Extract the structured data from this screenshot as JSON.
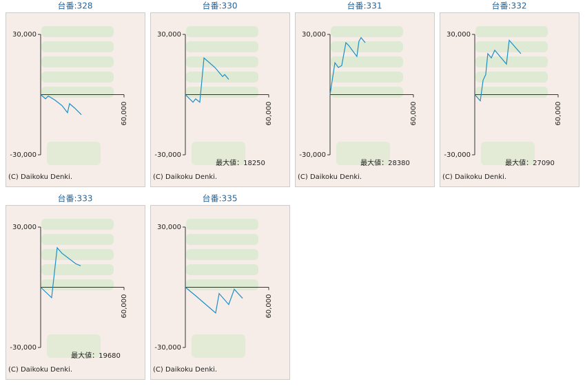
{
  "chart_data": [
    {
      "type": "line",
      "title": "台番:328",
      "color": "#1a8fc9",
      "x": [
        0,
        3500,
        5500,
        10400,
        15400,
        19300,
        20800,
        24300,
        29300
      ],
      "values": [
        0,
        -2100,
        -700,
        -2800,
        -5500,
        -9000,
        -4500,
        -6600,
        -10000
      ],
      "xlim": [
        0,
        60000
      ],
      "xticks": [
        {
          "value": 60000,
          "label": "60,000"
        }
      ],
      "ylim": [
        -30000,
        30000
      ],
      "yticks": [
        {
          "value": 30000,
          "label": "30,000"
        },
        {
          "value": -30000,
          "label": "-30,000"
        }
      ],
      "copyright": "(C) Daikoku Denki."
    },
    {
      "type": "line",
      "title": "台番:330",
      "color": "#1a8fc9",
      "x": [
        0,
        5500,
        7400,
        10400,
        13400,
        21300,
        26800,
        28300,
        31200
      ],
      "values": [
        0,
        -3800,
        -2100,
        -3800,
        18250,
        13500,
        9000,
        10000,
        7600
      ],
      "xlim": [
        0,
        60000
      ],
      "xticks": [
        {
          "value": 60000,
          "label": "60,000"
        }
      ],
      "ylim": [
        -30000,
        30000
      ],
      "yticks": [
        {
          "value": 30000,
          "label": "30,000"
        },
        {
          "value": -30000,
          "label": "-30,000"
        }
      ],
      "annotation": "最大値：18250",
      "copyright": "(C) Daikoku Denki."
    },
    {
      "type": "line",
      "title": "台番:331",
      "color": "#1a8fc9",
      "x": [
        0,
        3500,
        6000,
        8400,
        11400,
        13400,
        19300,
        20800,
        22300,
        25300
      ],
      "values": [
        0,
        15900,
        13500,
        14500,
        25900,
        24500,
        19000,
        26600,
        28380,
        25900
      ],
      "xlim": [
        0,
        60000
      ],
      "xticks": [
        {
          "value": 60000,
          "label": "60,000"
        }
      ],
      "ylim": [
        -30000,
        30000
      ],
      "yticks": [
        {
          "value": 30000,
          "label": "30,000"
        },
        {
          "value": -30000,
          "label": "-30,000"
        }
      ],
      "annotation": "最大値：28380",
      "copyright": "(C) Daikoku Denki."
    },
    {
      "type": "line",
      "title": "台番:332",
      "color": "#1a8fc9",
      "x": [
        0,
        4000,
        6000,
        7900,
        9400,
        11900,
        14400,
        22800,
        24800,
        33200
      ],
      "values": [
        0,
        -3100,
        7200,
        10000,
        20400,
        18300,
        22100,
        15200,
        27090,
        20400
      ],
      "xlim": [
        0,
        60000
      ],
      "xticks": [
        {
          "value": 60000,
          "label": "60,000"
        }
      ],
      "ylim": [
        -30000,
        30000
      ],
      "yticks": [
        {
          "value": 30000,
          "label": "30,000"
        },
        {
          "value": -30000,
          "label": "-30,000"
        }
      ],
      "annotation": "最大値：27090",
      "copyright": "(C) Daikoku Denki."
    },
    {
      "type": "line",
      "title": "台番:333",
      "color": "#1a8fc9",
      "x": [
        0,
        7900,
        11900,
        15400,
        25300,
        28800
      ],
      "values": [
        0,
        -5200,
        19680,
        16900,
        11700,
        10700
      ],
      "xlim": [
        0,
        60000
      ],
      "xticks": [
        {
          "value": 60000,
          "label": "60,000"
        }
      ],
      "ylim": [
        -30000,
        30000
      ],
      "yticks": [
        {
          "value": 30000,
          "label": "30,000"
        },
        {
          "value": -30000,
          "label": "-30,000"
        }
      ],
      "annotation": "最大値：19680",
      "copyright": "(C) Daikoku Denki."
    },
    {
      "type": "line",
      "title": "台番:335",
      "color": "#1a8fc9",
      "x": [
        0,
        7900,
        15400,
        21800,
        24300,
        31200,
        35200,
        41200
      ],
      "values": [
        0,
        -4500,
        -9000,
        -12800,
        -3100,
        -8600,
        -1000,
        -5500
      ],
      "xlim": [
        0,
        60000
      ],
      "xticks": [
        {
          "value": 60000,
          "label": "60,000"
        }
      ],
      "ylim": [
        -30000,
        30000
      ],
      "yticks": [
        {
          "value": 30000,
          "label": "30,000"
        },
        {
          "value": -30000,
          "label": "-30,000"
        }
      ],
      "copyright": "(C) Daikoku Denki."
    }
  ]
}
